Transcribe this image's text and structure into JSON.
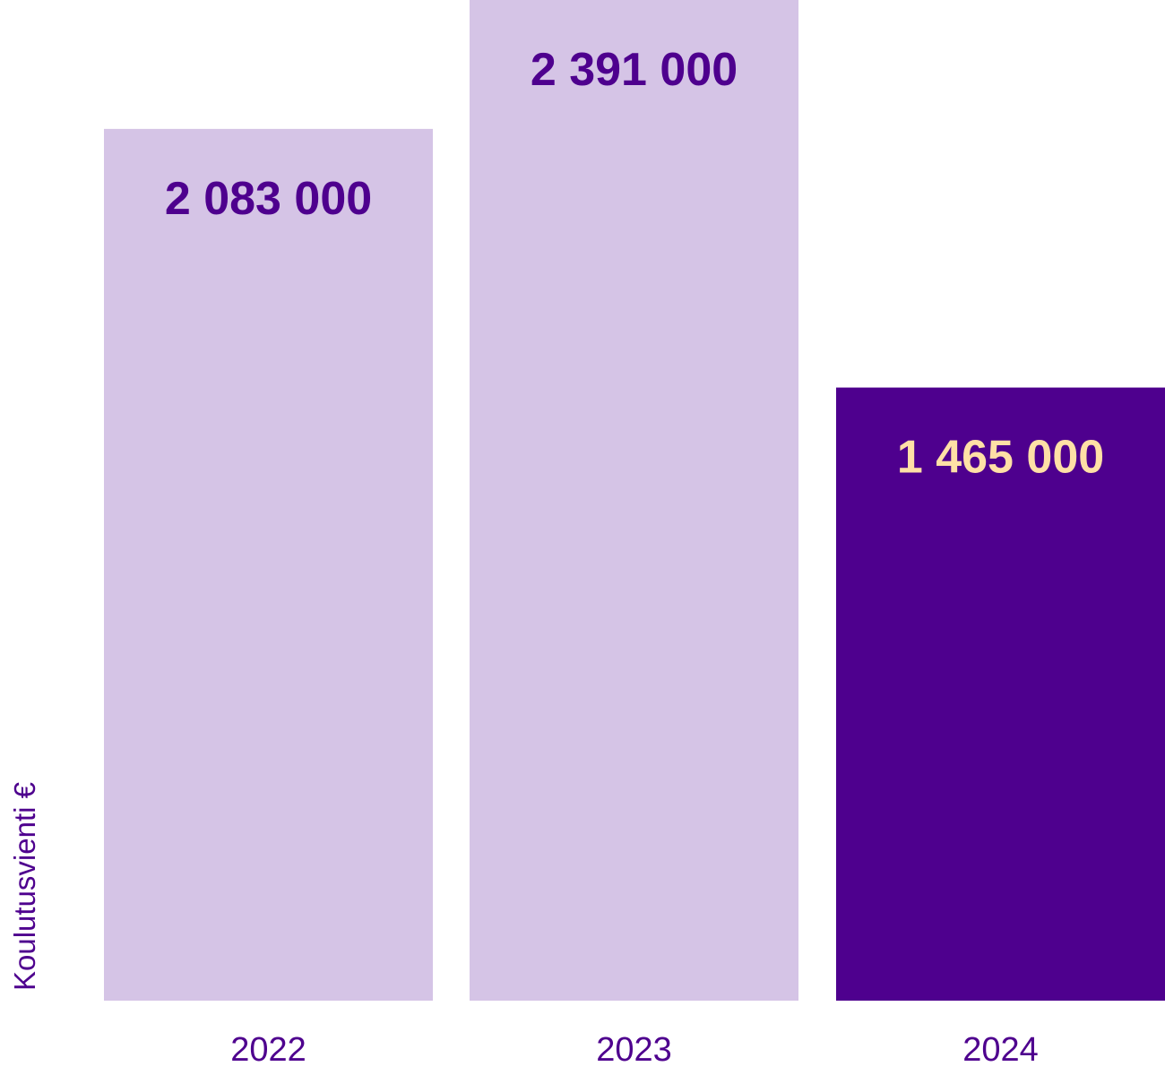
{
  "chart_data": {
    "type": "bar",
    "title": "",
    "xlabel": "",
    "ylabel": "Koulutusvienti €",
    "categories": [
      "2022",
      "2023",
      "2024"
    ],
    "values": [
      2083000,
      2391000,
      1465000
    ],
    "value_labels": [
      "2 083 000",
      "2 391 000",
      "1 465 000"
    ],
    "ylim": [
      0,
      2391000
    ],
    "grid": false,
    "legend": "none",
    "colors": {
      "bar_light": "#D5C4E6",
      "bar_dark": "#4E008E",
      "label_on_light": "#4E008E",
      "label_on_dark": "#FFE0A6",
      "axis_text": "#4E008E"
    },
    "bar_fill_keys": [
      "bar_light",
      "bar_light",
      "bar_dark"
    ],
    "label_color_keys": [
      "label_on_light",
      "label_on_light",
      "label_on_dark"
    ]
  }
}
